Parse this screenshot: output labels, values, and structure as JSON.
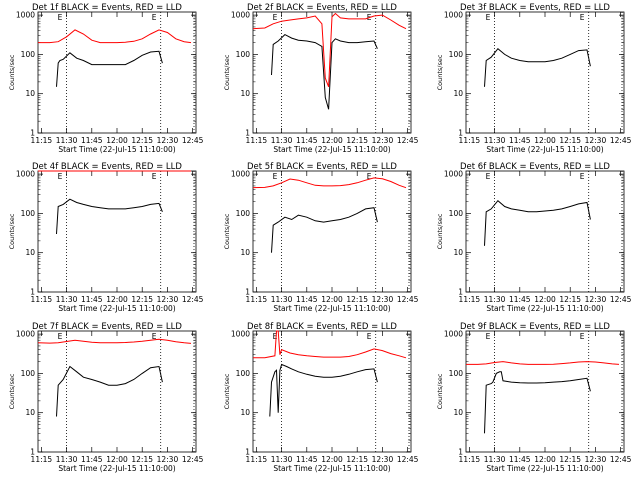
{
  "colors": {
    "events": "#000000",
    "lld": "#ff0000",
    "axis": "#000000",
    "background": "#ffffff"
  },
  "common": {
    "xlabel": "Start Time (22-Jul-15 11:10:00)",
    "ylabel": "Counts/sec",
    "x_ticks": [
      "11:15",
      "11:30",
      "11:45",
      "12:00",
      "12:15",
      "12:30",
      "12:45"
    ],
    "y_ticks": [
      "1",
      "10",
      "100",
      "1000"
    ],
    "ylim": [
      1,
      1200
    ],
    "y_scale": "log",
    "marker_labels": [
      "E",
      "E"
    ],
    "marker_times": [
      "11:30",
      "12:26"
    ]
  },
  "chart_data": [
    {
      "type": "line",
      "title": "Det 1f BLACK = Events, RED = LLD",
      "series": [
        {
          "name": "Events",
          "x": [
            "11:24",
            "11:25",
            "11:26",
            "11:28",
            "11:32",
            "11:36",
            "11:40",
            "11:45",
            "11:50",
            "11:55",
            "12:00",
            "12:05",
            "12:10",
            "12:15",
            "12:20",
            "12:25",
            "12:27"
          ],
          "y": [
            15,
            60,
            70,
            75,
            110,
            80,
            70,
            55,
            55,
            55,
            55,
            55,
            70,
            95,
            115,
            120,
            60
          ]
        },
        {
          "name": "LLD",
          "x": [
            "11:13",
            "11:20",
            "11:25",
            "11:30",
            "11:35",
            "11:40",
            "11:45",
            "11:50",
            "11:55",
            "12:00",
            "12:05",
            "12:10",
            "12:15",
            "12:20",
            "12:25",
            "12:30",
            "12:35",
            "12:40",
            "12:44"
          ],
          "y": [
            200,
            200,
            210,
            280,
            420,
            330,
            230,
            200,
            200,
            200,
            205,
            215,
            250,
            330,
            420,
            360,
            250,
            210,
            200
          ]
        }
      ]
    },
    {
      "type": "line",
      "title": "Det 2f BLACK = Events, RED = LLD",
      "series": [
        {
          "name": "Events",
          "x": [
            "11:24",
            "11:25",
            "11:28",
            "11:32",
            "11:36",
            "11:40",
            "11:45",
            "11:50",
            "11:54",
            "11:56",
            "11:58",
            "12:00",
            "12:02",
            "12:05",
            "12:10",
            "12:15",
            "12:20",
            "12:25",
            "12:27"
          ],
          "y": [
            30,
            180,
            220,
            320,
            260,
            230,
            220,
            200,
            160,
            8,
            4,
            200,
            250,
            220,
            200,
            200,
            210,
            220,
            140
          ]
        },
        {
          "name": "LLD",
          "x": [
            "11:13",
            "11:20",
            "11:25",
            "11:30",
            "11:35",
            "11:40",
            "11:45",
            "11:50",
            "11:54",
            "11:56",
            "11:58",
            "12:00",
            "12:02",
            "12:05",
            "12:10",
            "12:15",
            "12:20",
            "12:25",
            "12:30",
            "12:35",
            "12:40",
            "12:44"
          ],
          "y": [
            450,
            470,
            600,
            700,
            750,
            800,
            850,
            950,
            600,
            25,
            15,
            900,
            1100,
            850,
            800,
            800,
            800,
            950,
            1000,
            750,
            550,
            450
          ]
        }
      ]
    },
    {
      "type": "line",
      "title": "Det 3f BLACK = Events, RED = LLD",
      "series": [
        {
          "name": "Events",
          "x": [
            "11:24",
            "11:25",
            "11:28",
            "11:32",
            "11:36",
            "11:40",
            "11:45",
            "11:50",
            "11:55",
            "12:00",
            "12:05",
            "12:10",
            "12:15",
            "12:20",
            "12:25",
            "12:27"
          ],
          "y": [
            15,
            70,
            85,
            140,
            100,
            80,
            70,
            65,
            65,
            65,
            70,
            80,
            100,
            125,
            130,
            50
          ]
        }
      ]
    },
    {
      "type": "line",
      "title": "Det 4f BLACK = Events, RED = LLD",
      "series": [
        {
          "name": "Events",
          "x": [
            "11:24",
            "11:25",
            "11:28",
            "11:32",
            "11:36",
            "11:40",
            "11:45",
            "11:50",
            "11:55",
            "12:00",
            "12:05",
            "12:10",
            "12:15",
            "12:20",
            "12:25",
            "12:27"
          ],
          "y": [
            30,
            150,
            170,
            230,
            190,
            170,
            150,
            140,
            130,
            130,
            130,
            140,
            150,
            170,
            180,
            110
          ]
        },
        {
          "name": "LLD",
          "x": [
            "11:13",
            "11:30",
            "12:00",
            "12:30",
            "12:44"
          ],
          "y": [
            1200,
            1200,
            1200,
            1200,
            1200
          ]
        }
      ]
    },
    {
      "type": "line",
      "title": "Det 5f BLACK = Events, RED = LLD",
      "series": [
        {
          "name": "Events",
          "x": [
            "11:24",
            "11:25",
            "11:28",
            "11:32",
            "11:36",
            "11:40",
            "11:45",
            "11:50",
            "11:55",
            "12:00",
            "12:05",
            "12:10",
            "12:15",
            "12:20",
            "12:25",
            "12:27"
          ],
          "y": [
            10,
            50,
            60,
            80,
            70,
            90,
            80,
            65,
            60,
            65,
            70,
            80,
            100,
            130,
            140,
            60
          ]
        },
        {
          "name": "LLD",
          "x": [
            "11:13",
            "11:20",
            "11:25",
            "11:30",
            "11:35",
            "11:40",
            "11:45",
            "11:50",
            "11:55",
            "12:00",
            "12:05",
            "12:10",
            "12:15",
            "12:20",
            "12:25",
            "12:30",
            "12:35",
            "12:40",
            "12:44"
          ],
          "y": [
            450,
            460,
            500,
            600,
            750,
            700,
            600,
            520,
            500,
            500,
            510,
            540,
            600,
            700,
            800,
            760,
            650,
            520,
            450
          ]
        }
      ]
    },
    {
      "type": "line",
      "title": "Det 6f BLACK = Events, RED = LLD",
      "series": [
        {
          "name": "Events",
          "x": [
            "11:24",
            "11:25",
            "11:28",
            "11:32",
            "11:36",
            "11:40",
            "11:45",
            "11:50",
            "11:55",
            "12:00",
            "12:05",
            "12:10",
            "12:15",
            "12:20",
            "12:25",
            "12:27"
          ],
          "y": [
            15,
            110,
            130,
            210,
            150,
            130,
            120,
            110,
            110,
            115,
            120,
            130,
            150,
            175,
            190,
            70
          ]
        }
      ]
    },
    {
      "type": "line",
      "title": "Det 7f BLACK = Events, RED = LLD",
      "series": [
        {
          "name": "Events",
          "x": [
            "11:24",
            "11:25",
            "11:28",
            "11:32",
            "11:36",
            "11:40",
            "11:45",
            "11:50",
            "11:55",
            "12:00",
            "12:05",
            "12:10",
            "12:15",
            "12:20",
            "12:25",
            "12:27"
          ],
          "y": [
            8,
            50,
            70,
            150,
            110,
            80,
            70,
            60,
            50,
            50,
            55,
            70,
            100,
            140,
            150,
            60
          ]
        },
        {
          "name": "LLD",
          "x": [
            "11:13",
            "11:20",
            "11:25",
            "11:30",
            "11:35",
            "11:40",
            "11:45",
            "11:50",
            "11:55",
            "12:00",
            "12:05",
            "12:10",
            "12:15",
            "12:20",
            "12:25",
            "12:30",
            "12:35",
            "12:40",
            "12:44"
          ],
          "y": [
            600,
            590,
            600,
            650,
            700,
            660,
            620,
            600,
            600,
            600,
            610,
            630,
            660,
            700,
            740,
            700,
            640,
            600,
            580
          ]
        }
      ]
    },
    {
      "type": "line",
      "title": "Det 8f BLACK = Events, RED = LLD",
      "series": [
        {
          "name": "Events",
          "x": [
            "11:23",
            "11:24",
            "11:26",
            "11:27",
            "11:28",
            "11:29",
            "11:30",
            "11:33",
            "11:36",
            "11:40",
            "11:45",
            "11:50",
            "11:55",
            "12:00",
            "12:05",
            "12:10",
            "12:15",
            "12:20",
            "12:25",
            "12:27"
          ],
          "y": [
            8,
            60,
            110,
            120,
            10,
            120,
            170,
            150,
            130,
            110,
            95,
            85,
            80,
            80,
            85,
            95,
            110,
            125,
            130,
            60
          ]
        },
        {
          "name": "LLD",
          "x": [
            "11:13",
            "11:20",
            "11:26",
            "11:27",
            "11:28",
            "11:29",
            "11:30",
            "11:35",
            "11:40",
            "11:45",
            "11:50",
            "11:55",
            "12:00",
            "12:05",
            "12:10",
            "12:15",
            "12:20",
            "12:25",
            "12:30",
            "12:35",
            "12:40",
            "12:44"
          ],
          "y": [
            250,
            250,
            280,
            1200,
            1200,
            300,
            400,
            330,
            300,
            280,
            270,
            260,
            260,
            260,
            270,
            300,
            350,
            420,
            380,
            320,
            280,
            250
          ]
        }
      ]
    },
    {
      "type": "line",
      "title": "Det 9f BLACK = Events, RED = LLD",
      "series": [
        {
          "name": "Events",
          "x": [
            "11:24",
            "11:25",
            "11:28",
            "11:29",
            "11:31",
            "11:33",
            "11:34",
            "11:35",
            "11:40",
            "11:45",
            "11:50",
            "11:55",
            "12:00",
            "12:05",
            "12:10",
            "12:15",
            "12:20",
            "12:25",
            "12:27"
          ],
          "y": [
            3,
            50,
            55,
            60,
            100,
            110,
            110,
            65,
            60,
            58,
            57,
            57,
            58,
            60,
            62,
            65,
            70,
            75,
            35
          ]
        },
        {
          "name": "LLD",
          "x": [
            "11:13",
            "11:20",
            "11:25",
            "11:30",
            "11:35",
            "11:40",
            "11:45",
            "11:50",
            "11:55",
            "12:00",
            "12:05",
            "12:10",
            "12:15",
            "12:20",
            "12:25",
            "12:30",
            "12:35",
            "12:40",
            "12:44"
          ],
          "y": [
            170,
            170,
            175,
            190,
            200,
            185,
            175,
            170,
            170,
            170,
            172,
            178,
            185,
            195,
            200,
            195,
            185,
            175,
            170
          ]
        }
      ]
    }
  ]
}
